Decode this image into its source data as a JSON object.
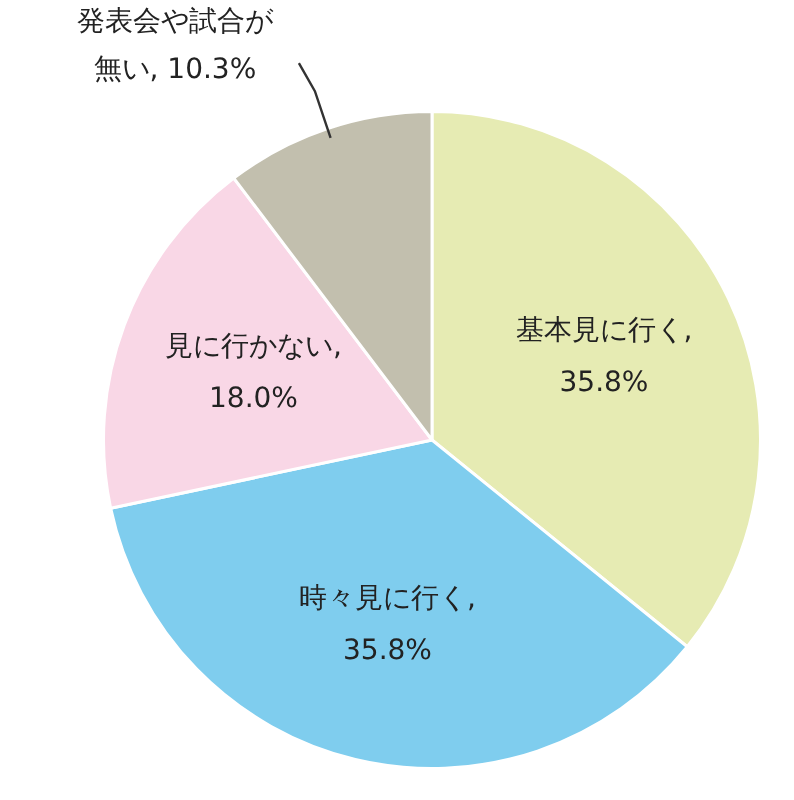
{
  "chart_data": {
    "type": "pie",
    "categories": [
      "基本見に行く",
      "時々見に行く",
      "見に行かない",
      "発表会や試合が無い"
    ],
    "values": [
      35.8,
      35.8,
      18.0,
      10.3
    ],
    "value_labels": [
      ", 35.8%",
      ", 35.8%",
      ", 18.0%",
      ", 10.3%"
    ],
    "colors": [
      "#e6ebb3",
      "#7fcdee",
      "#f9d7e6",
      "#c2bfae"
    ],
    "legend": false
  }
}
